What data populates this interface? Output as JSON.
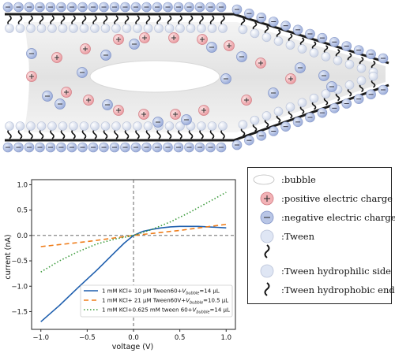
{
  "colors": {
    "positive_fill": "#f2b2b6",
    "negative_fill": "#b9c6e6",
    "tween_head": "#dfe6f4",
    "series_1": "#1f5fae",
    "series_2": "#ef7d1a",
    "series_3": "#3a9a3a"
  },
  "legend": {
    "items": [
      {
        "symbol": "bubble-icon",
        "label": ":bubble"
      },
      {
        "symbol": "positive-charge-icon",
        "label": ":positive electric charge"
      },
      {
        "symbol": "negative-charge-icon",
        "label": ":negative electric charge"
      },
      {
        "symbol": "tween-icon",
        "label": ":Tween"
      },
      {
        "symbol": "hydrophobic-tail-icon",
        "label": ""
      },
      {
        "symbol": "tween-head-icon",
        "label": ":Tween hydrophilic side"
      },
      {
        "symbol": "hydrophobic-tail-icon",
        "label": ":Tween hydrophobic end"
      }
    ]
  },
  "chart_data": {
    "type": "line",
    "title": "",
    "xlabel": "voltage (V)",
    "ylabel": "current (nA)",
    "xlim": [
      -1.1,
      1.1
    ],
    "ylim": [
      -1.85,
      1.1
    ],
    "xticks": [
      -1.0,
      -0.5,
      0.0,
      0.5,
      1.0
    ],
    "xtick_labels": [
      "−1.0",
      "−0.5",
      "0.0",
      "0.5",
      "1.0"
    ],
    "yticks": [
      -1.5,
      -1.0,
      -0.5,
      0.0,
      0.5,
      1.0
    ],
    "ytick_labels": [
      "−1.5",
      "−1.0",
      "−0.5",
      "0.0",
      "0.5",
      "1.0"
    ],
    "reference_lines": {
      "x": 0,
      "y": 0
    },
    "legend_position": "bottom-right",
    "series": [
      {
        "name": "1 mM KCl+ 10 μM Tween60+Vbubble=14 μL",
        "style": "solid",
        "x": [
          -1.0,
          -0.8,
          -0.6,
          -0.4,
          -0.2,
          -0.1,
          0.0,
          0.1,
          0.2,
          0.3,
          0.4,
          0.5,
          0.6,
          0.7,
          0.8,
          0.9,
          1.0
        ],
        "y": [
          -1.7,
          -1.38,
          -1.03,
          -0.69,
          -0.33,
          -0.15,
          0.0,
          0.08,
          0.12,
          0.15,
          0.17,
          0.18,
          0.18,
          0.18,
          0.17,
          0.16,
          0.15
        ]
      },
      {
        "name": "1 mM KCl+ 21 μM Tween60V+Vbubble=10.5 μL",
        "style": "dashed",
        "x": [
          -1.0,
          -0.5,
          0.0,
          0.5,
          1.0
        ],
        "y": [
          -0.22,
          -0.12,
          0.0,
          0.1,
          0.22
        ]
      },
      {
        "name": "1 mM KCl+0.625 mM tween 60+Vbubble=14 μL",
        "style": "dotted",
        "x": [
          -1.0,
          -0.8,
          -0.6,
          -0.4,
          -0.2,
          0.0,
          0.2,
          0.4,
          0.6,
          0.8,
          1.0
        ],
        "y": [
          -0.72,
          -0.5,
          -0.32,
          -0.17,
          -0.07,
          0.0,
          0.12,
          0.27,
          0.45,
          0.65,
          0.85
        ]
      }
    ]
  }
}
